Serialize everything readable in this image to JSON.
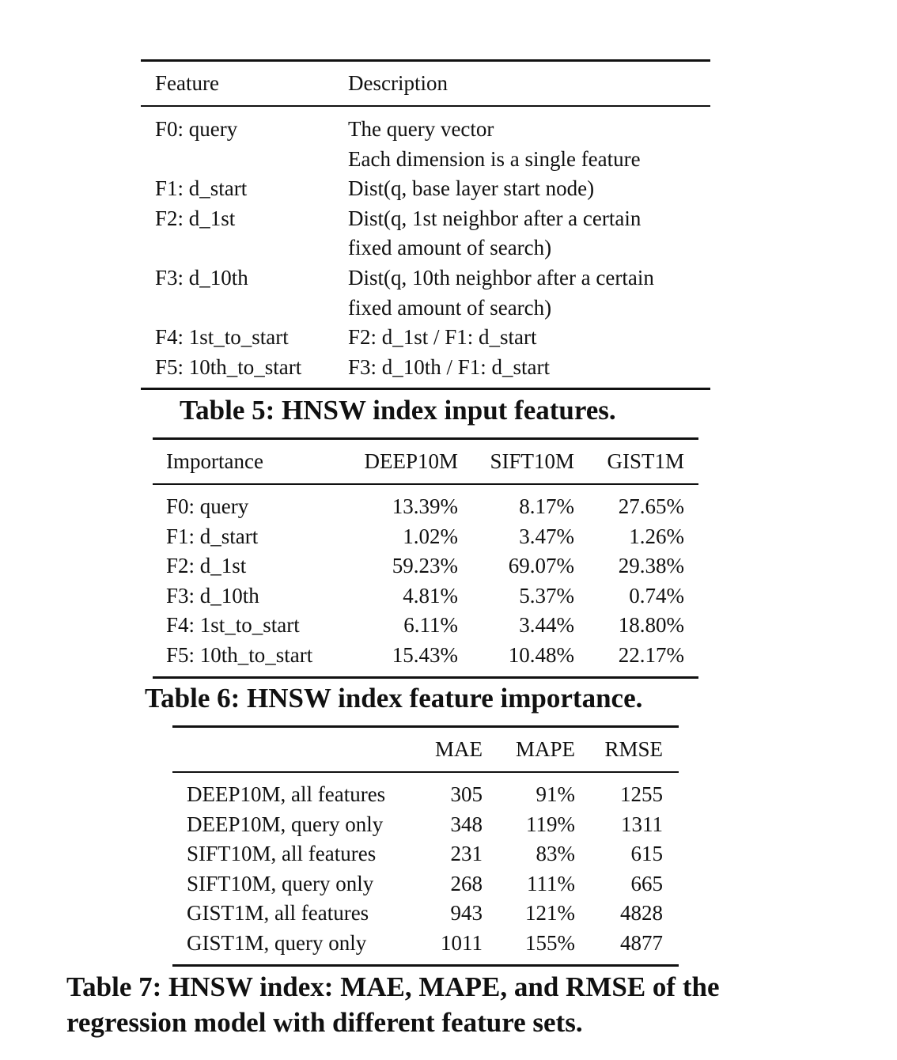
{
  "table5": {
    "headers": [
      "Feature",
      "Description"
    ],
    "rows": [
      {
        "feature": "F0: query",
        "description": [
          "The query vector",
          "Each dimension is a single feature"
        ]
      },
      {
        "feature": "F1: d_start",
        "description": [
          "Dist(q, base layer start node)"
        ]
      },
      {
        "feature": "F2: d_1st",
        "description": [
          "Dist(q, 1st neighbor after a certain",
          "fixed amount of search)"
        ]
      },
      {
        "feature": "F3: d_10th",
        "description": [
          "Dist(q, 10th neighbor after a certain",
          "fixed amount of search)"
        ]
      },
      {
        "feature": "F4: 1st_to_start",
        "description": [
          "F2: d_1st / F1: d_start"
        ]
      },
      {
        "feature": "F5: 10th_to_start",
        "description": [
          "F3: d_10th / F1: d_start"
        ]
      }
    ],
    "caption": "Table 5: HNSW index input features."
  },
  "table6": {
    "headers": [
      "Importance",
      "DEEP10M",
      "SIFT10M",
      "GIST1M"
    ],
    "rows": [
      [
        "F0: query",
        "13.39%",
        "8.17%",
        "27.65%"
      ],
      [
        "F1: d_start",
        "1.02%",
        "3.47%",
        "1.26%"
      ],
      [
        "F2: d_1st",
        "59.23%",
        "69.07%",
        "29.38%"
      ],
      [
        "F3: d_10th",
        "4.81%",
        "5.37%",
        "0.74%"
      ],
      [
        "F4: 1st_to_start",
        "6.11%",
        "3.44%",
        "18.80%"
      ],
      [
        "F5: 10th_to_start",
        "15.43%",
        "10.48%",
        "22.17%"
      ]
    ],
    "caption": "Table 6: HNSW index feature importance."
  },
  "table7": {
    "headers": [
      "",
      "MAE",
      "MAPE",
      "RMSE"
    ],
    "rows": [
      [
        "DEEP10M, all features",
        "305",
        "91%",
        "1255"
      ],
      [
        "DEEP10M, query only",
        "348",
        "119%",
        "1311"
      ],
      [
        "SIFT10M, all features",
        "231",
        "83%",
        "615"
      ],
      [
        "SIFT10M, query only",
        "268",
        "111%",
        "665"
      ],
      [
        "GIST1M, all features",
        "943",
        "121%",
        "4828"
      ],
      [
        "GIST1M, query only",
        "1011",
        "155%",
        "4877"
      ]
    ],
    "caption_lines": [
      "Table 7: HNSW index: MAE, MAPE, and RMSE of the",
      "regression model with different feature sets."
    ]
  }
}
